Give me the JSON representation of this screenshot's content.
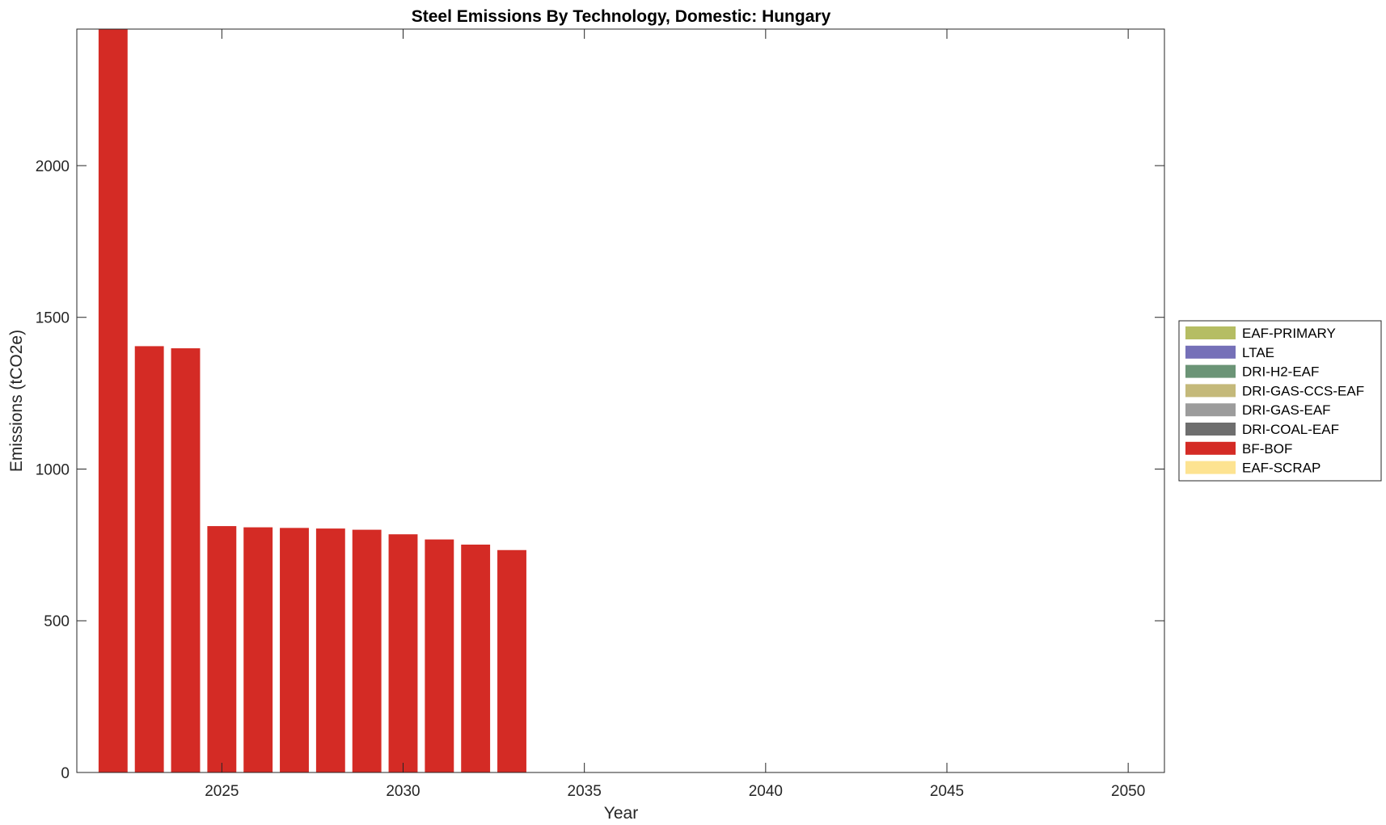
{
  "chart_data": {
    "type": "bar",
    "stacked": true,
    "title": "Steel Emissions By Technology, Domestic: Hungary",
    "xlabel": "Year",
    "ylabel": "Emissions (tCO2e)",
    "x": [
      2022,
      2023,
      2024,
      2025,
      2026,
      2027,
      2028,
      2029,
      2030,
      2031,
      2032,
      2033
    ],
    "xlim": [
      2021,
      2051
    ],
    "ylim": [
      0,
      2450
    ],
    "xticks": [
      2025,
      2030,
      2035,
      2040,
      2045,
      2050
    ],
    "yticks": [
      0,
      500,
      1000,
      1500,
      2000
    ],
    "xtick_labels": [
      "2025",
      "2030",
      "2035",
      "2040",
      "2045",
      "2050"
    ],
    "ytick_labels": [
      "0",
      "500",
      "1000",
      "1500",
      "2000"
    ],
    "grid": false,
    "legend_position": "right",
    "series": [
      {
        "name": "EAF-PRIMARY",
        "color": "#b5bd63",
        "values": [
          0,
          0,
          0,
          0,
          0,
          0,
          0,
          0,
          0,
          0,
          0,
          0
        ]
      },
      {
        "name": "LTAE",
        "color": "#7570b8",
        "values": [
          0,
          0,
          0,
          0,
          0,
          0,
          0,
          0,
          0,
          0,
          0,
          0
        ]
      },
      {
        "name": "DRI-H2-EAF",
        "color": "#6b9476",
        "values": [
          0,
          0,
          0,
          0,
          0,
          0,
          0,
          0,
          0,
          0,
          0,
          0
        ]
      },
      {
        "name": "DRI-GAS-CCS-EAF",
        "color": "#c4b97a",
        "values": [
          0,
          0,
          0,
          0,
          0,
          0,
          0,
          0,
          0,
          0,
          0,
          0
        ]
      },
      {
        "name": "DRI-GAS-EAF",
        "color": "#9c9c9c",
        "values": [
          0,
          0,
          0,
          0,
          0,
          0,
          0,
          0,
          0,
          0,
          0,
          0
        ]
      },
      {
        "name": "DRI-COAL-EAF",
        "color": "#6e6e6e",
        "values": [
          0,
          0,
          0,
          0,
          0,
          0,
          0,
          0,
          0,
          0,
          0,
          0
        ]
      },
      {
        "name": "BF-BOF",
        "color": "#d42b25",
        "values": [
          2450,
          1405,
          1398,
          812,
          808,
          806,
          804,
          800,
          785,
          768,
          751,
          733
        ]
      },
      {
        "name": "EAF-SCRAP",
        "color": "#fde391",
        "values": [
          0,
          0,
          0,
          0,
          0,
          0,
          0,
          0,
          0,
          0,
          0,
          0
        ]
      }
    ]
  }
}
